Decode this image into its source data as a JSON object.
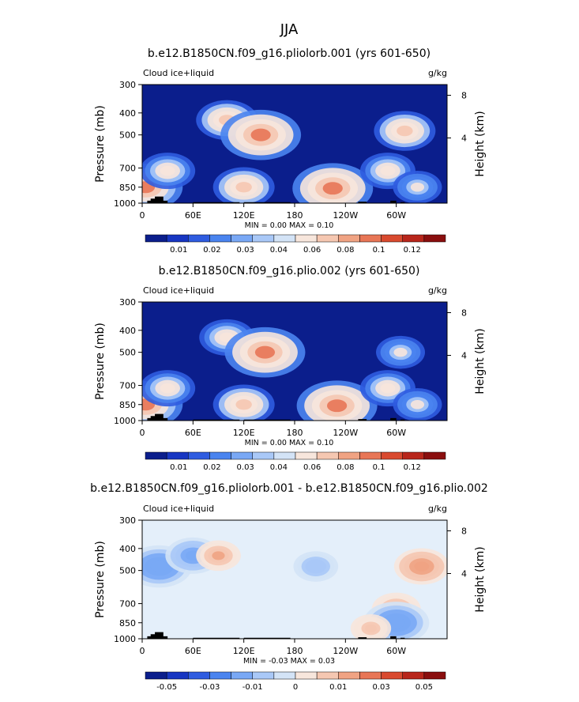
{
  "suptitle": "JJA",
  "chart_data": [
    {
      "type": "heatmap",
      "title": "b.e12.B1850CN.f09_g16.pliolorb.001 (yrs 601-650)",
      "field_label": "Cloud ice+liquid",
      "units": "g/kg",
      "ylabel": "Pressure (mb)",
      "y2label": "Height (km)",
      "x_ticks": [
        "0",
        "60E",
        "120E",
        "180",
        "120W",
        "60W"
      ],
      "x_tick_values": [
        0,
        60,
        120,
        180,
        240,
        300
      ],
      "xlim": [
        0,
        360
      ],
      "y_ticks": [
        "300",
        "400",
        "500",
        "700",
        "850",
        "1000"
      ],
      "y_tick_values": [
        300,
        400,
        500,
        700,
        850,
        1000
      ],
      "ylim": [
        300,
        1000
      ],
      "y2_ticks": [
        "4",
        "8"
      ],
      "y2_tick_values": [
        4,
        8
      ],
      "stats": "MIN =    0.00   MAX =    0.10",
      "colorbar": {
        "levels": [
          0.01,
          0.02,
          0.03,
          0.04,
          0.06,
          0.08,
          0.1,
          0.12
        ],
        "labels": [
          "0.01",
          "0.02",
          "0.03",
          "0.04",
          "0.06",
          "0.08",
          "0.1",
          "0.12"
        ],
        "colors": [
          "#0b1e8c",
          "#1736c2",
          "#2f5ce0",
          "#4a84ef",
          "#79a8f5",
          "#a9c8f7",
          "#d3e3f6",
          "#f7e6dc",
          "#f5c7b1",
          "#f0a383",
          "#e87656",
          "#d94a2f",
          "#b8261b",
          "#8a0e0e"
        ]
      },
      "features": [
        {
          "lon": 4,
          "p": 850,
          "value": 0.08
        },
        {
          "lon": 30,
          "p": 720,
          "value": 0.05
        },
        {
          "lon": 100,
          "p": 430,
          "value": 0.06
        },
        {
          "lon": 140,
          "p": 500,
          "value": 0.09
        },
        {
          "lon": 120,
          "p": 850,
          "value": 0.06
        },
        {
          "lon": 225,
          "p": 860,
          "value": 0.09
        },
        {
          "lon": 310,
          "p": 480,
          "value": 0.06
        },
        {
          "lon": 290,
          "p": 720,
          "value": 0.05
        },
        {
          "lon": 325,
          "p": 850,
          "value": 0.04
        }
      ]
    },
    {
      "type": "heatmap",
      "title": "b.e12.B1850CN.f09_g16.plio.002 (yrs 601-650)",
      "field_label": "Cloud ice+liquid",
      "units": "g/kg",
      "ylabel": "Pressure (mb)",
      "y2label": "Height (km)",
      "x_ticks": [
        "0",
        "60E",
        "120E",
        "180",
        "120W",
        "60W"
      ],
      "x_tick_values": [
        0,
        60,
        120,
        180,
        240,
        300
      ],
      "xlim": [
        0,
        360
      ],
      "y_ticks": [
        "300",
        "400",
        "500",
        "700",
        "850",
        "1000"
      ],
      "y_tick_values": [
        300,
        400,
        500,
        700,
        850,
        1000
      ],
      "ylim": [
        300,
        1000
      ],
      "y2_ticks": [
        "4",
        "8"
      ],
      "y2_tick_values": [
        4,
        8
      ],
      "stats": "MIN =    0.00   MAX =    0.10",
      "colorbar": {
        "levels": [
          0.01,
          0.02,
          0.03,
          0.04,
          0.06,
          0.08,
          0.1,
          0.12
        ],
        "labels": [
          "0.01",
          "0.02",
          "0.03",
          "0.04",
          "0.06",
          "0.08",
          "0.1",
          "0.12"
        ],
        "colors": [
          "#0b1e8c",
          "#1736c2",
          "#2f5ce0",
          "#4a84ef",
          "#79a8f5",
          "#a9c8f7",
          "#d3e3f6",
          "#f7e6dc",
          "#f5c7b1",
          "#f0a383",
          "#e87656",
          "#d94a2f",
          "#b8261b",
          "#8a0e0e"
        ]
      },
      "features": [
        {
          "lon": 4,
          "p": 850,
          "value": 0.08
        },
        {
          "lon": 30,
          "p": 720,
          "value": 0.05
        },
        {
          "lon": 100,
          "p": 430,
          "value": 0.05
        },
        {
          "lon": 145,
          "p": 500,
          "value": 0.09
        },
        {
          "lon": 120,
          "p": 850,
          "value": 0.06
        },
        {
          "lon": 230,
          "p": 860,
          "value": 0.09
        },
        {
          "lon": 305,
          "p": 500,
          "value": 0.04
        },
        {
          "lon": 290,
          "p": 720,
          "value": 0.05
        },
        {
          "lon": 325,
          "p": 850,
          "value": 0.04
        }
      ]
    },
    {
      "type": "heatmap",
      "title": "b.e12.B1850CN.f09_g16.pliolorb.001 - b.e12.B1850CN.f09_g16.plio.002",
      "field_label": "Cloud ice+liquid",
      "units": "g/kg",
      "ylabel": "Pressure (mb)",
      "y2label": "Height (km)",
      "x_ticks": [
        "0",
        "60E",
        "120E",
        "180",
        "120W",
        "60W"
      ],
      "x_tick_values": [
        0,
        60,
        120,
        180,
        240,
        300
      ],
      "xlim": [
        0,
        360
      ],
      "y_ticks": [
        "300",
        "400",
        "500",
        "700",
        "850",
        "1000"
      ],
      "y_tick_values": [
        300,
        400,
        500,
        700,
        850,
        1000
      ],
      "ylim": [
        300,
        1000
      ],
      "y2_ticks": [
        "4",
        "8"
      ],
      "y2_tick_values": [
        4,
        8
      ],
      "stats": "MIN =   -0.03   MAX =    0.03",
      "colorbar": {
        "levels": [
          -0.05,
          -0.04,
          -0.03,
          -0.02,
          -0.01,
          -0.005,
          0,
          0.005,
          0.01,
          0.02,
          0.03,
          0.04,
          0.05
        ],
        "labels": [
          "-0.05",
          "-0.03",
          "-0.01",
          "0",
          "0.01",
          "0.03",
          "0.05"
        ],
        "label_levels": [
          -0.05,
          -0.03,
          -0.01,
          0,
          0.01,
          0.03,
          0.05
        ],
        "colors": [
          "#0b1e8c",
          "#1736c2",
          "#2f5ce0",
          "#4a84ef",
          "#79a8f5",
          "#a9c8f7",
          "#d3e3f6",
          "#f7e6dc",
          "#f5c7b1",
          "#f0a383",
          "#e87656",
          "#d94a2f",
          "#b8261b",
          "#8a0e0e"
        ]
      },
      "features": [
        {
          "lon": 20,
          "p": 480,
          "value": -0.02
        },
        {
          "lon": 60,
          "p": 430,
          "value": -0.015
        },
        {
          "lon": 90,
          "p": 430,
          "value": 0.01
        },
        {
          "lon": 205,
          "p": 480,
          "value": -0.01
        },
        {
          "lon": 330,
          "p": 480,
          "value": 0.015
        },
        {
          "lon": 300,
          "p": 740,
          "value": 0.012
        },
        {
          "lon": 300,
          "p": 850,
          "value": -0.02
        },
        {
          "lon": 270,
          "p": 900,
          "value": 0.008
        }
      ]
    }
  ]
}
